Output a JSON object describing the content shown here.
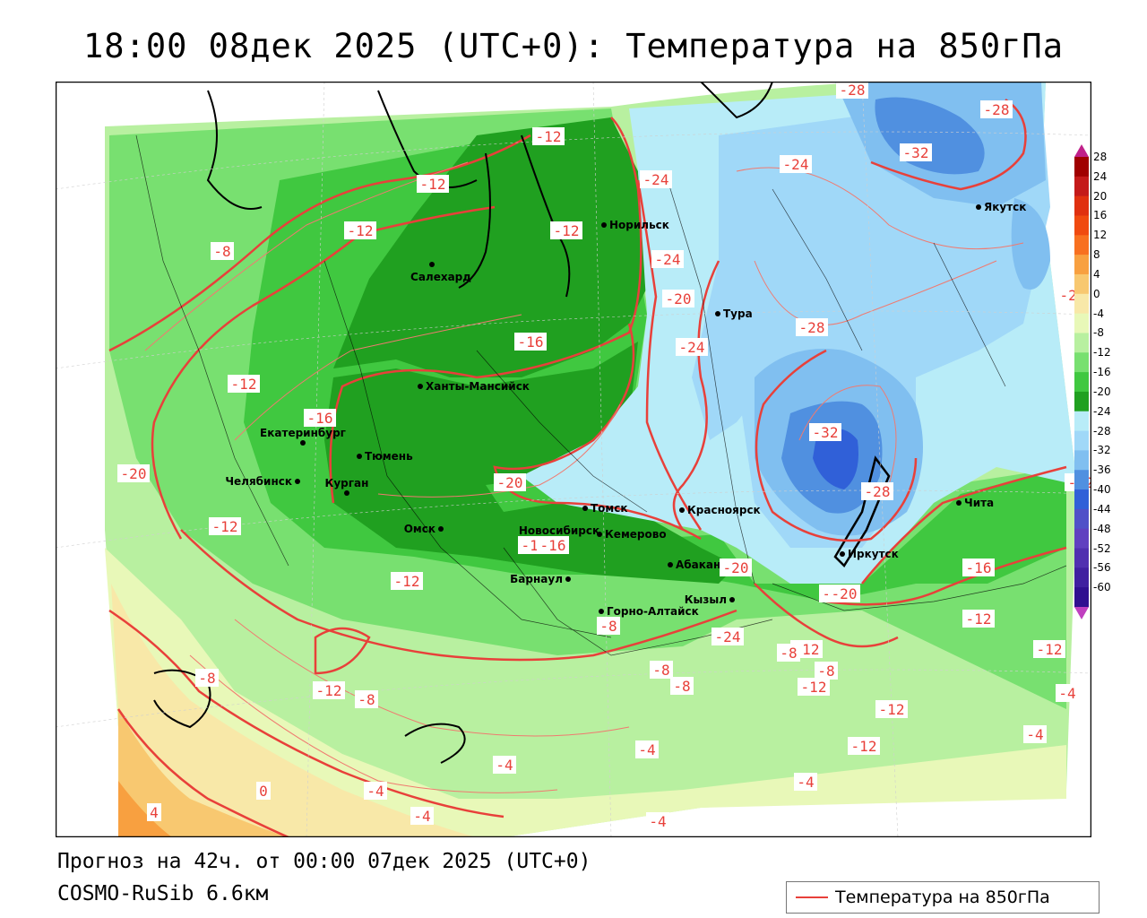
{
  "title": "18:00 08дек 2025 (UTC+0): Температура на 850гПа",
  "forecast_line": "Прогноз на 42ч. от 00:00 07дек 2025 (UTC+0)",
  "model_line": "COSMO-RuSib 6.6км",
  "legend_label": "Температура на 850гПа",
  "colorbar": {
    "labels": [
      "28",
      "24",
      "20",
      "16",
      "12",
      "8",
      "4",
      "0",
      "-4",
      "-8",
      "-12",
      "-16",
      "-20",
      "-24",
      "-28",
      "-32",
      "-36",
      "-40",
      "-44",
      "-48",
      "-52",
      "-56",
      "-60"
    ],
    "colors": [
      "#a00000",
      "#c41a1a",
      "#e03010",
      "#f04a10",
      "#f87020",
      "#f8a040",
      "#f8c870",
      "#f8e8a8",
      "#e8f8b8",
      "#b8f0a0",
      "#78e070",
      "#40c840",
      "#20a020",
      "#b8ecf8",
      "#a0d8f8",
      "#80bff0",
      "#5090e0",
      "#3060d8",
      "#5050c8",
      "#6040c0",
      "#5030b0",
      "#4020a0",
      "#301090"
    ],
    "arrow_top_color": "#c0208a",
    "arrow_bottom_color": "#c040c0"
  },
  "colors": {
    "contour": "#e8403a",
    "thin_contour": "#f07a70",
    "coastline": "#000000"
  },
  "cities": [
    {
      "name": "Норильск"
    },
    {
      "name": "Салехард"
    },
    {
      "name": "Тура"
    },
    {
      "name": "Якутск"
    },
    {
      "name": "Ханты-Мансийск"
    },
    {
      "name": "Екатеринбург"
    },
    {
      "name": "Тюмень"
    },
    {
      "name": "Челябинск"
    },
    {
      "name": "Курган"
    },
    {
      "name": "Омск"
    },
    {
      "name": "Новосибирск"
    },
    {
      "name": "Томск"
    },
    {
      "name": "Красноярск"
    },
    {
      "name": "Кемерово"
    },
    {
      "name": "Абакан"
    },
    {
      "name": "Барнаул"
    },
    {
      "name": "Иркутск"
    },
    {
      "name": "Чита"
    },
    {
      "name": "Кызыл"
    },
    {
      "name": "Горно-Алтайск"
    }
  ],
  "contour_labels": [
    "-12",
    "-12",
    "-12",
    "-8",
    "-12",
    "-12",
    "-16",
    "-16",
    "-16",
    "-20",
    "-20",
    "-20",
    "-20",
    "-24",
    "-24",
    "-24",
    "-24",
    "-24",
    "-28",
    "-28",
    "-28",
    "-28",
    "-28",
    "-32",
    "-32",
    "-20",
    "-16",
    "-16",
    "-12",
    "-12",
    "-12",
    "-12",
    "-8",
    "-8",
    "-8",
    "-8",
    "-8",
    "-8",
    "-8",
    "-12",
    "-12",
    "-4",
    "-4",
    "-4",
    "-4",
    "-4",
    "-4",
    "-4",
    "-4",
    "0",
    "4",
    "-12",
    "-12",
    "-12",
    "-12",
    "-20"
  ]
}
